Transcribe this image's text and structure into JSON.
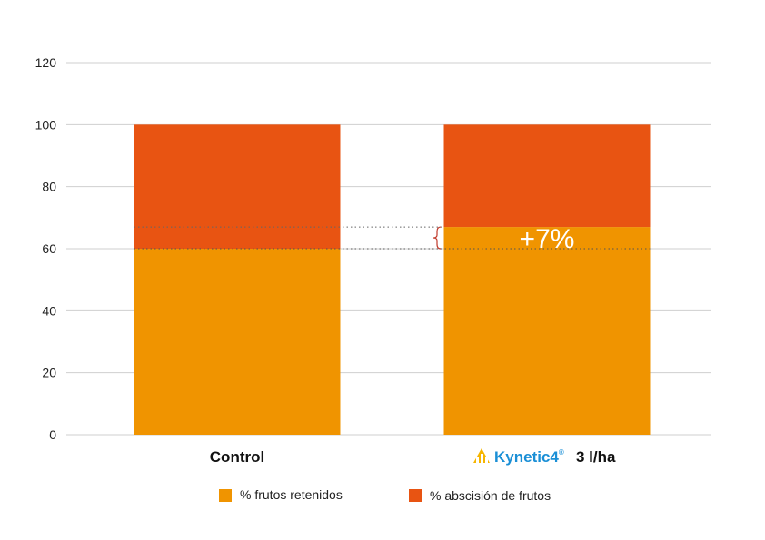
{
  "chart_data": {
    "type": "bar",
    "stacked": true,
    "categories": [
      "Control",
      "3 l/ha"
    ],
    "brand": {
      "name": "Kynetic4",
      "reg": "®"
    },
    "series": [
      {
        "name": "% frutos retenidos",
        "values": [
          60,
          67
        ],
        "color": "#f09400"
      },
      {
        "name": "% abscisión de frutos",
        "values": [
          40,
          33
        ],
        "color": "#e85412"
      }
    ],
    "ylim": [
      0,
      120
    ],
    "yticks": [
      "0",
      "20",
      "40",
      "60",
      "80",
      "100",
      "120"
    ],
    "grid": true,
    "legend": "bottom",
    "annotation": {
      "text": "+7%",
      "from": 60,
      "to": 67,
      "color": "#c0392b"
    }
  }
}
